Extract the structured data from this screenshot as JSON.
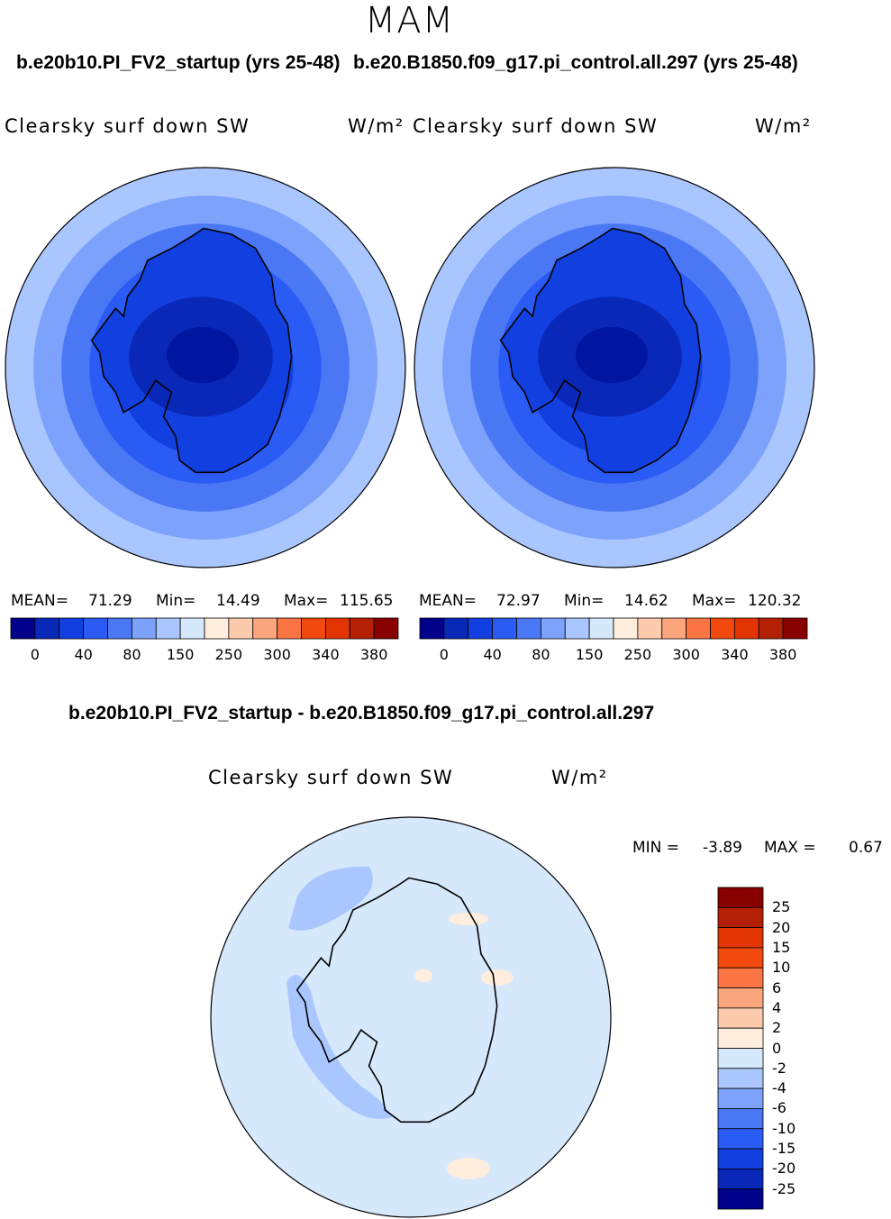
{
  "season": "MAM",
  "colors": {
    "abs_scale": [
      "#00008a",
      "#0a28b8",
      "#1240e0",
      "#2a5cf5",
      "#4a78f5",
      "#7da2fc",
      "#aac6ff",
      "#d6e8fb",
      "#ffeedd",
      "#fccbad",
      "#fca67d",
      "#fb7544",
      "#f24a0e",
      "#e23503",
      "#b32003",
      "#880000"
    ],
    "diff_scale": [
      "#00008a",
      "#0a28b8",
      "#1240e0",
      "#2a5cf5",
      "#4a78f5",
      "#7da2fc",
      "#aac6ff",
      "#d6e8fb",
      "#ffeedd",
      "#fccbad",
      "#fca67d",
      "#fb7544",
      "#f24a0e",
      "#e23503",
      "#b32003",
      "#880000"
    ],
    "ocean_rings": [
      "#aac6ff",
      "#7da2fc",
      "#4a78f5",
      "#2a5cf5",
      "#1240e0",
      "#0a28b8"
    ],
    "diff_bg": "#d6e8fb"
  },
  "panel_left": {
    "case": "b.e20b10.PI_FV2_startup (yrs 25-48)",
    "variable": "Clearsky surf down SW",
    "units": "W/m²",
    "mean_label": "MEAN=",
    "mean": "71.29",
    "min_label": "Min=",
    "min": "14.49",
    "max_label": "Max=",
    "max": "115.65"
  },
  "panel_right": {
    "case": "b.e20.B1850.f09_g17.pi_control.all.297 (yrs 25-48)",
    "variable": "Clearsky surf down SW",
    "units": "W/m²",
    "mean_label": "MEAN=",
    "mean": "72.97",
    "min_label": "Min=",
    "min": "14.62",
    "max_label": "Max=",
    "max": "120.32"
  },
  "panel_diff": {
    "case": "b.e20b10.PI_FV2_startup - b.e20.B1850.f09_g17.pi_control.all.297",
    "variable": "Clearsky surf down SW",
    "units": "W/m²",
    "min_label": "MIN =",
    "min": "-3.89",
    "max_label": "MAX =",
    "max": "0.67"
  },
  "chart_data": [
    {
      "type": "heatmap",
      "title": "b.e20b10.PI_FV2_startup (yrs 25-48)",
      "projection": "south-polar-stereographic",
      "colorbar_ticks": [
        "0",
        "40",
        "80",
        "150",
        "250",
        "300",
        "340",
        "380"
      ],
      "mean": 71.29,
      "min": 14.49,
      "max": 115.65
    },
    {
      "type": "heatmap",
      "title": "b.e20.B1850.f09_g17.pi_control.all.297 (yrs 25-48)",
      "projection": "south-polar-stereographic",
      "colorbar_ticks": [
        "0",
        "40",
        "80",
        "150",
        "250",
        "300",
        "340",
        "380"
      ],
      "mean": 72.97,
      "min": 14.62,
      "max": 120.32
    },
    {
      "type": "heatmap",
      "title": "b.e20b10.PI_FV2_startup - b.e20.B1850.f09_g17.pi_control.all.297",
      "projection": "south-polar-stereographic",
      "colorbar_ticks": [
        "25",
        "20",
        "15",
        "10",
        "6",
        "4",
        "2",
        "0",
        "-2",
        "-4",
        "-6",
        "-10",
        "-15",
        "-20",
        "-25"
      ],
      "min": -3.89,
      "max": 0.67
    }
  ]
}
